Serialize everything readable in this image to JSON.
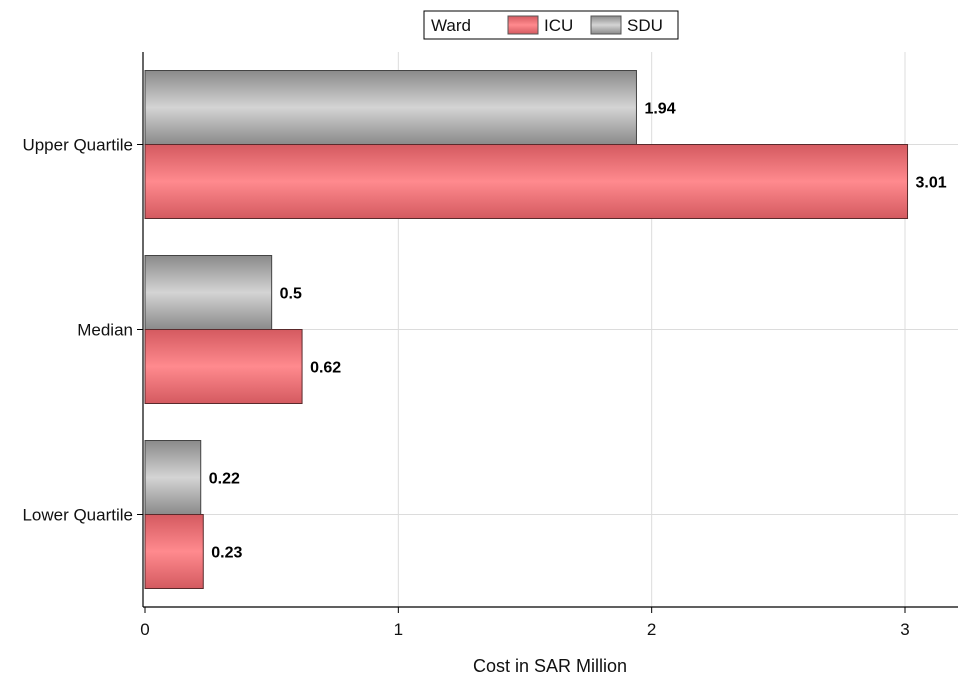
{
  "chart_data": {
    "type": "bar",
    "orientation": "horizontal",
    "categories": [
      "Upper Quartile",
      "Median",
      "Lower Quartile"
    ],
    "series": [
      {
        "name": "SDU",
        "values": [
          1.94,
          0.5,
          0.22
        ],
        "color": "#c8c8c8",
        "label_texts": [
          "1.94",
          "0.5",
          "0.22"
        ]
      },
      {
        "name": "ICU",
        "values": [
          3.01,
          0.62,
          0.23
        ],
        "color": "#ff8a8e",
        "label_texts": [
          "3.01",
          "0.62",
          "0.23"
        ]
      }
    ],
    "xlabel": "Cost in SAR Million",
    "ylabel": "",
    "xlim": [
      0,
      3.2
    ],
    "xticks": [
      0,
      1,
      2,
      3
    ],
    "xtick_labels": [
      "0",
      "1",
      "2",
      "3"
    ],
    "grid": true,
    "legend": {
      "title": "Ward",
      "placement": "top-center",
      "entries": [
        "ICU",
        "SDU"
      ]
    }
  }
}
